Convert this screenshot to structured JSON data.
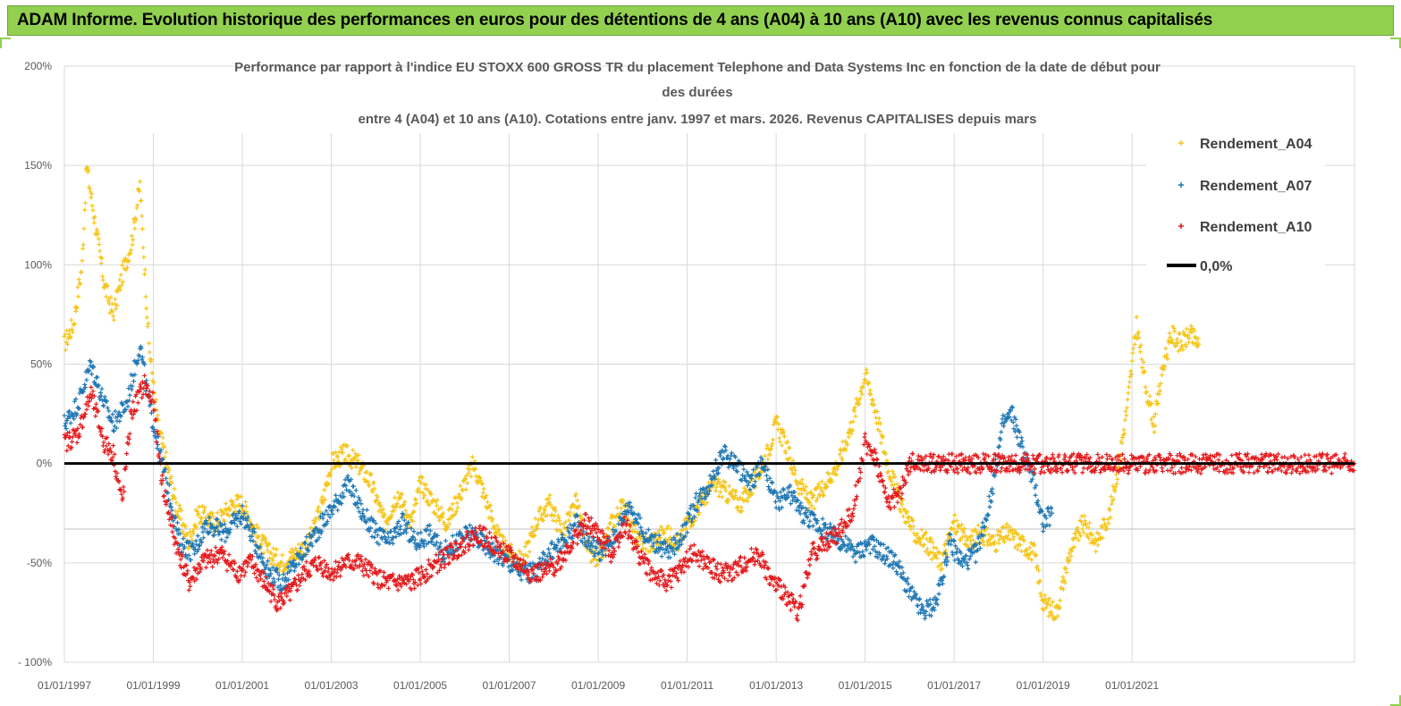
{
  "banner": {
    "title": "ADAM Informe. Evolution historique des performances en euros pour des détentions de 4 ans (A04) à 10 ans (A10) avec les revenus connus capitalisés"
  },
  "colors": {
    "banner": "#92d050",
    "A04": "#f5c518",
    "A07": "#1f77b4",
    "A10": "#e41a1c",
    "zero": "#000000"
  },
  "chart_data": {
    "type": "scatter",
    "title_lines": [
      "Performance par rapport à l'indice EU STOXX 600 GROSS TR  du placement Telephone and Data Systems Inc en fonction de la date de début pour",
      "des durées",
      "entre 4 (A04) et 10 ans (A10).  Cotations entre janv. 1997 et mars. 2026.  Revenus CAPITALISES depuis mars"
    ],
    "y_ticks": [
      "200%",
      "150%",
      "100%",
      "50%",
      "0%",
      "-50%",
      "- 100%"
    ],
    "x_ticks": [
      "01/01/1997",
      "01/01/1999",
      "01/01/2001",
      "01/01/2003",
      "01/01/2005",
      "01/01/2007",
      "01/01/2009",
      "01/01/2011",
      "01/01/2013",
      "01/01/2015",
      "01/01/2017",
      "01/01/2019",
      "01/01/2021"
    ],
    "ylim": [
      -100,
      200
    ],
    "xlim": [
      1997.0,
      2026.0
    ],
    "grid": true,
    "legend_position": "right",
    "series": [
      {
        "name": "Rendement_A04",
        "color": "#f5c518",
        "points": [
          [
            1997.0,
            60
          ],
          [
            1997.2,
            70
          ],
          [
            1997.4,
            100
          ],
          [
            1997.5,
            150
          ],
          [
            1997.7,
            120
          ],
          [
            1997.9,
            90
          ],
          [
            1998.1,
            75
          ],
          [
            1998.3,
            95
          ],
          [
            1998.5,
            110
          ],
          [
            1998.7,
            140
          ],
          [
            1998.9,
            60
          ],
          [
            1999.1,
            20
          ],
          [
            1999.3,
            0
          ],
          [
            1999.5,
            -20
          ],
          [
            1999.8,
            -40
          ],
          [
            2000.0,
            -25
          ],
          [
            2000.4,
            -30
          ],
          [
            2000.8,
            -20
          ],
          [
            2001.0,
            -20
          ],
          [
            2001.3,
            -35
          ],
          [
            2001.6,
            -45
          ],
          [
            2001.9,
            -50
          ],
          [
            2002.2,
            -45
          ],
          [
            2002.5,
            -40
          ],
          [
            2002.8,
            -20
          ],
          [
            2003.0,
            0
          ],
          [
            2003.3,
            5
          ],
          [
            2003.6,
            0
          ],
          [
            2003.9,
            -10
          ],
          [
            2004.2,
            -30
          ],
          [
            2004.5,
            -15
          ],
          [
            2004.8,
            -30
          ],
          [
            2005.0,
            -10
          ],
          [
            2005.3,
            -20
          ],
          [
            2005.6,
            -30
          ],
          [
            2005.9,
            -15
          ],
          [
            2006.2,
            0
          ],
          [
            2006.5,
            -20
          ],
          [
            2006.8,
            -40
          ],
          [
            2007.0,
            -45
          ],
          [
            2007.3,
            -50
          ],
          [
            2007.6,
            -30
          ],
          [
            2007.9,
            -20
          ],
          [
            2008.2,
            -35
          ],
          [
            2008.5,
            -20
          ],
          [
            2008.8,
            -45
          ],
          [
            2009.0,
            -50
          ],
          [
            2009.3,
            -30
          ],
          [
            2009.6,
            -20
          ],
          [
            2009.9,
            -40
          ],
          [
            2010.2,
            -40
          ],
          [
            2010.5,
            -35
          ],
          [
            2010.8,
            -40
          ],
          [
            2011.0,
            -30
          ],
          [
            2011.3,
            -20
          ],
          [
            2011.6,
            -10
          ],
          [
            2011.9,
            -15
          ],
          [
            2012.2,
            -20
          ],
          [
            2012.5,
            -10
          ],
          [
            2012.8,
            5
          ],
          [
            2013.0,
            20
          ],
          [
            2013.2,
            10
          ],
          [
            2013.5,
            -10
          ],
          [
            2013.8,
            -20
          ],
          [
            2014.1,
            -10
          ],
          [
            2014.4,
            0
          ],
          [
            2014.7,
            20
          ],
          [
            2015.0,
            45
          ],
          [
            2015.2,
            30
          ],
          [
            2015.5,
            0
          ],
          [
            2015.8,
            -20
          ],
          [
            2016.1,
            -35
          ],
          [
            2016.4,
            -40
          ],
          [
            2016.7,
            -50
          ],
          [
            2017.0,
            -30
          ],
          [
            2017.3,
            -40
          ],
          [
            2017.6,
            -35
          ],
          [
            2017.9,
            -40
          ],
          [
            2018.2,
            -35
          ],
          [
            2018.5,
            -40
          ],
          [
            2018.8,
            -45
          ],
          [
            2019.0,
            -70
          ],
          [
            2019.3,
            -75
          ],
          [
            2019.6,
            -45
          ],
          [
            2019.9,
            -30
          ],
          [
            2020.2,
            -40
          ],
          [
            2020.5,
            -25
          ],
          [
            2020.7,
            0
          ],
          [
            2020.9,
            30
          ],
          [
            2021.1,
            70
          ],
          [
            2021.3,
            40
          ],
          [
            2021.5,
            20
          ],
          [
            2021.7,
            50
          ],
          [
            2021.9,
            65
          ],
          [
            2022.1,
            60
          ],
          [
            2022.3,
            65
          ],
          [
            2022.5,
            60
          ]
        ]
      },
      {
        "name": "Rendement_A07",
        "color": "#1f77b4",
        "points": [
          [
            1997.0,
            20
          ],
          [
            1997.3,
            30
          ],
          [
            1997.6,
            50
          ],
          [
            1997.9,
            30
          ],
          [
            1998.1,
            20
          ],
          [
            1998.4,
            30
          ],
          [
            1998.7,
            60
          ],
          [
            1998.9,
            30
          ],
          [
            1999.1,
            10
          ],
          [
            1999.3,
            -10
          ],
          [
            1999.6,
            -40
          ],
          [
            1999.9,
            -45
          ],
          [
            2000.2,
            -30
          ],
          [
            2000.6,
            -35
          ],
          [
            2001.0,
            -25
          ],
          [
            2001.3,
            -40
          ],
          [
            2001.6,
            -55
          ],
          [
            2001.9,
            -60
          ],
          [
            2002.2,
            -50
          ],
          [
            2002.5,
            -40
          ],
          [
            2002.8,
            -30
          ],
          [
            2003.1,
            -20
          ],
          [
            2003.4,
            -10
          ],
          [
            2003.7,
            -25
          ],
          [
            2004.0,
            -35
          ],
          [
            2004.3,
            -40
          ],
          [
            2004.6,
            -30
          ],
          [
            2004.9,
            -40
          ],
          [
            2005.2,
            -35
          ],
          [
            2005.5,
            -45
          ],
          [
            2005.8,
            -40
          ],
          [
            2006.1,
            -35
          ],
          [
            2006.4,
            -40
          ],
          [
            2006.7,
            -45
          ],
          [
            2007.0,
            -50
          ],
          [
            2007.3,
            -55
          ],
          [
            2007.6,
            -55
          ],
          [
            2007.9,
            -45
          ],
          [
            2008.2,
            -40
          ],
          [
            2008.5,
            -30
          ],
          [
            2008.8,
            -40
          ],
          [
            2009.1,
            -45
          ],
          [
            2009.4,
            -35
          ],
          [
            2009.7,
            -20
          ],
          [
            2010.0,
            -35
          ],
          [
            2010.3,
            -40
          ],
          [
            2010.6,
            -45
          ],
          [
            2010.9,
            -35
          ],
          [
            2011.2,
            -20
          ],
          [
            2011.5,
            -10
          ],
          [
            2011.8,
            5
          ],
          [
            2012.1,
            0
          ],
          [
            2012.4,
            -10
          ],
          [
            2012.7,
            0
          ],
          [
            2013.0,
            -20
          ],
          [
            2013.3,
            -15
          ],
          [
            2013.6,
            -25
          ],
          [
            2013.9,
            -30
          ],
          [
            2014.2,
            -35
          ],
          [
            2014.5,
            -40
          ],
          [
            2014.8,
            -45
          ],
          [
            2015.1,
            -40
          ],
          [
            2015.4,
            -45
          ],
          [
            2015.7,
            -50
          ],
          [
            2016.0,
            -65
          ],
          [
            2016.3,
            -75
          ],
          [
            2016.6,
            -70
          ],
          [
            2016.9,
            -40
          ],
          [
            2017.2,
            -50
          ],
          [
            2017.5,
            -45
          ],
          [
            2017.8,
            -20
          ],
          [
            2018.1,
            20
          ],
          [
            2018.3,
            25
          ],
          [
            2018.5,
            10
          ],
          [
            2018.8,
            -10
          ],
          [
            2019.0,
            -30
          ],
          [
            2019.2,
            -25
          ]
        ]
      },
      {
        "name": "Rendement_A10",
        "color": "#e41a1c",
        "points": [
          [
            1997.0,
            10
          ],
          [
            1997.3,
            15
          ],
          [
            1997.6,
            35
          ],
          [
            1997.9,
            10
          ],
          [
            1998.1,
            5
          ],
          [
            1998.3,
            -20
          ],
          [
            1998.5,
            25
          ],
          [
            1998.8,
            40
          ],
          [
            1999.0,
            30
          ],
          [
            1999.2,
            -10
          ],
          [
            1999.5,
            -40
          ],
          [
            1999.8,
            -60
          ],
          [
            2000.1,
            -50
          ],
          [
            2000.5,
            -45
          ],
          [
            2000.9,
            -55
          ],
          [
            2001.2,
            -50
          ],
          [
            2001.5,
            -60
          ],
          [
            2001.8,
            -70
          ],
          [
            2002.1,
            -65
          ],
          [
            2002.4,
            -55
          ],
          [
            2002.7,
            -50
          ],
          [
            2003.0,
            -55
          ],
          [
            2003.3,
            -50
          ],
          [
            2003.6,
            -50
          ],
          [
            2003.9,
            -55
          ],
          [
            2004.2,
            -60
          ],
          [
            2004.5,
            -60
          ],
          [
            2004.8,
            -60
          ],
          [
            2005.1,
            -55
          ],
          [
            2005.4,
            -50
          ],
          [
            2005.7,
            -45
          ],
          [
            2006.0,
            -40
          ],
          [
            2006.3,
            -35
          ],
          [
            2006.6,
            -40
          ],
          [
            2006.9,
            -45
          ],
          [
            2007.2,
            -50
          ],
          [
            2007.5,
            -55
          ],
          [
            2007.8,
            -55
          ],
          [
            2008.1,
            -50
          ],
          [
            2008.4,
            -40
          ],
          [
            2008.7,
            -30
          ],
          [
            2009.0,
            -35
          ],
          [
            2009.3,
            -45
          ],
          [
            2009.6,
            -30
          ],
          [
            2009.9,
            -45
          ],
          [
            2010.2,
            -55
          ],
          [
            2010.5,
            -60
          ],
          [
            2010.8,
            -55
          ],
          [
            2011.1,
            -45
          ],
          [
            2011.4,
            -50
          ],
          [
            2011.7,
            -55
          ],
          [
            2012.0,
            -55
          ],
          [
            2012.3,
            -50
          ],
          [
            2012.6,
            -45
          ],
          [
            2012.9,
            -60
          ],
          [
            2013.2,
            -65
          ],
          [
            2013.5,
            -75
          ],
          [
            2013.8,
            -45
          ],
          [
            2014.1,
            -40
          ],
          [
            2014.4,
            -35
          ],
          [
            2014.7,
            -25
          ],
          [
            2015.0,
            10
          ],
          [
            2015.2,
            5
          ],
          [
            2015.5,
            -20
          ],
          [
            2015.8,
            -15
          ],
          [
            2016.0,
            0
          ],
          [
            2017.0,
            0
          ],
          [
            2018.0,
            0
          ],
          [
            2019.0,
            0
          ],
          [
            2020.0,
            0
          ],
          [
            2021.0,
            0
          ],
          [
            2022.0,
            0
          ],
          [
            2023.0,
            0
          ],
          [
            2024.0,
            0
          ],
          [
            2025.0,
            0
          ],
          [
            2026.0,
            0
          ]
        ]
      },
      {
        "name": "0,0%",
        "color": "#000000",
        "points": [
          [
            1997.0,
            0
          ],
          [
            2026.0,
            0
          ]
        ]
      }
    ]
  }
}
